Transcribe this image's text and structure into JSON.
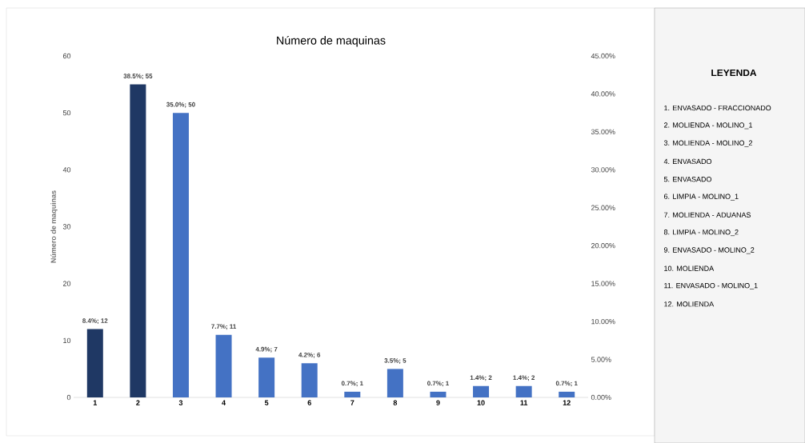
{
  "chart_data": {
    "type": "bar",
    "title": "Número de maquinas",
    "ylabel": "Número de maquinas",
    "legend_title": "LEYENDA",
    "categories": [
      "1",
      "2",
      "3",
      "4",
      "5",
      "6",
      "7",
      "8",
      "9",
      "10",
      "11",
      "12"
    ],
    "values": [
      12,
      55,
      50,
      11,
      7,
      6,
      1,
      5,
      1,
      2,
      2,
      1
    ],
    "colors": [
      "#1f3864",
      "#1f3864",
      "#4472c4",
      "#4472c4",
      "#4472c4",
      "#4472c4",
      "#4472c4",
      "#4472c4",
      "#4472c4",
      "#4472c4",
      "#4472c4",
      "#4472c4"
    ],
    "value_labels": [
      "8.4%; 12",
      "38.5%; 55",
      "35.0%; 50",
      "7.7%; 11",
      "4.9%; 7",
      "4.2%; 6",
      "0.7%; 1",
      "3.5%; 5",
      "0.7%; 1",
      "1.4%; 2",
      "1.4%; 2",
      "0.7%; 1"
    ],
    "ylim": [
      0,
      60
    ],
    "yticks": [
      0,
      10,
      20,
      30,
      40,
      50,
      60
    ],
    "y2lim": [
      0,
      45
    ],
    "y2ticks": [
      {
        "value": 0,
        "label": "0.00%"
      },
      {
        "value": 5,
        "label": "5.00%"
      },
      {
        "value": 10,
        "label": "10.00%"
      },
      {
        "value": 15,
        "label": "15.00%"
      },
      {
        "value": 20,
        "label": "20.00%"
      },
      {
        "value": 25,
        "label": "25.00%"
      },
      {
        "value": 30,
        "label": "30.00%"
      },
      {
        "value": 35,
        "label": "35.00%"
      },
      {
        "value": 40,
        "label": "40.00%"
      },
      {
        "value": 45,
        "label": "45.00%"
      }
    ],
    "annotations": [
      "1. ENVASADO - FRACCIONADO",
      "2. MOLIENDA - MOLINO_1",
      "3. MOLIENDA - MOLINO_2",
      "4. ENVASADO",
      "5. ENVASADO",
      "6. LIMPIA - MOLINO_1",
      "7. MOLIENDA - ADUANAS",
      "8. LIMPIA - MOLINO_2",
      "9. ENVASADO - MOLINO_2",
      "10. MOLIENDA",
      "11. ENVASADO - MOLINO_1",
      "12. MOLIENDA"
    ]
  }
}
